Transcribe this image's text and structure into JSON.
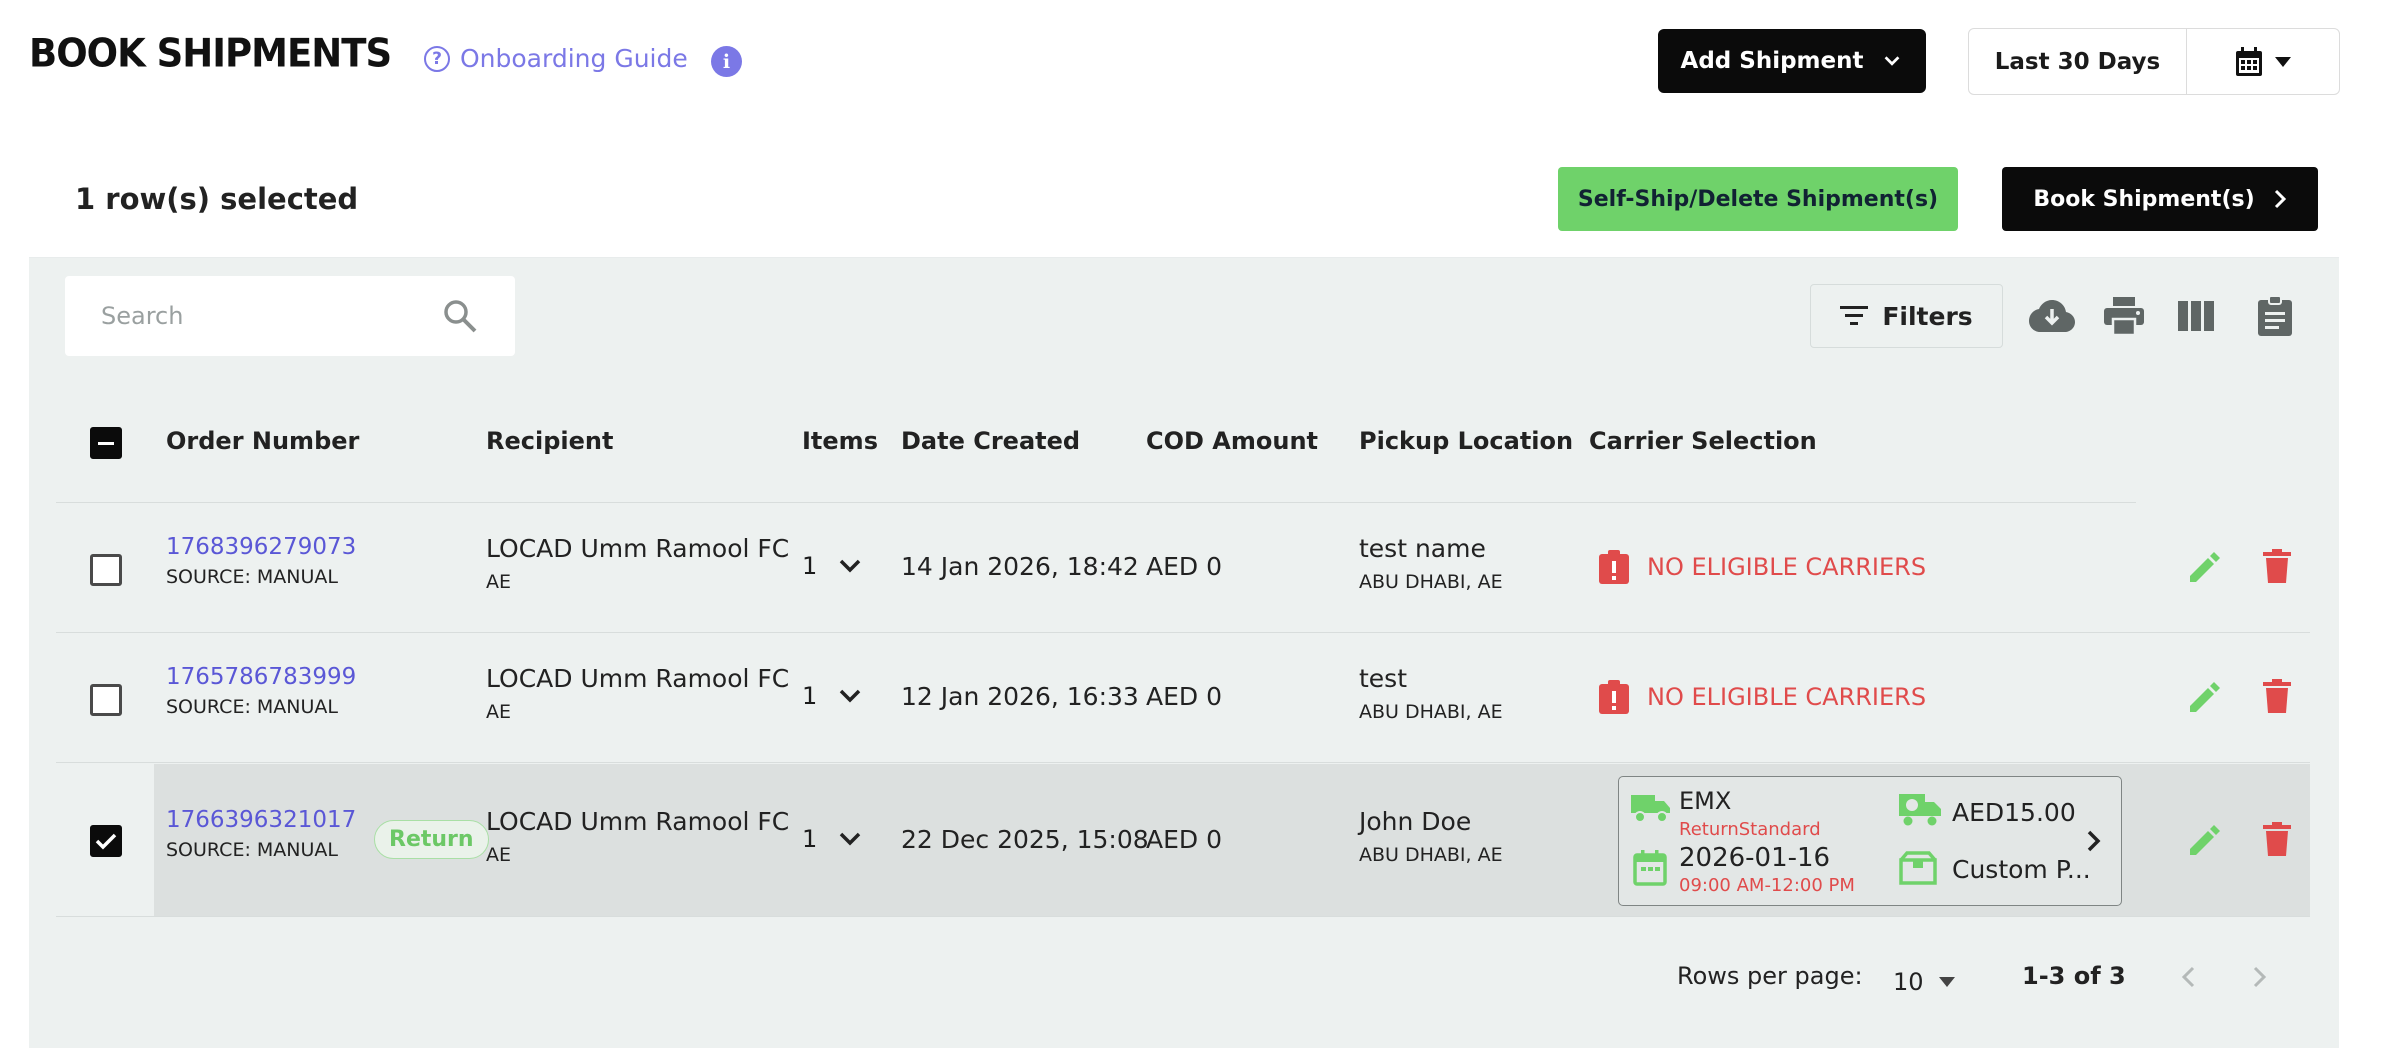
{
  "header": {
    "title": "BOOK SHIPMENTS",
    "onboarding_label": "Onboarding Guide",
    "add_shipment_label": "Add Shipment",
    "date_range_label": "Last 30 Days"
  },
  "selection": {
    "count_text": "1 row(s) selected",
    "self_ship_label": "Self-Ship/Delete Shipment(s)",
    "book_label": "Book Shipment(s)"
  },
  "toolbar": {
    "search_placeholder": "Search",
    "filters_label": "Filters",
    "icons": [
      "cloud-download-icon",
      "print-icon",
      "columns-icon",
      "clipboard-icon"
    ]
  },
  "table": {
    "columns": [
      "Order Number",
      "Recipient",
      "Items",
      "Date Created",
      "COD Amount",
      "Pickup Location",
      "Carrier Selection"
    ],
    "rows": [
      {
        "order_number": "1768396279073",
        "source": "SOURCE: MANUAL",
        "recipient": "LOCAD Umm Ramool FC",
        "recipient_country": "AE",
        "items": "1",
        "date_created": "14 Jan 2026, 18:42",
        "cod_amount": "AED 0",
        "pickup_name": "test name",
        "pickup_city": "ABU DHABI, AE",
        "carrier_status": "NO ELIGIBLE CARRIERS",
        "selected": false
      },
      {
        "order_number": "1765786783999",
        "source": "SOURCE: MANUAL",
        "recipient": "LOCAD Umm Ramool FC",
        "recipient_country": "AE",
        "items": "1",
        "date_created": "12 Jan 2026, 16:33",
        "cod_amount": "AED 0",
        "pickup_name": "test",
        "pickup_city": "ABU DHABI, AE",
        "carrier_status": "NO ELIGIBLE CARRIERS",
        "selected": false
      },
      {
        "order_number": "1766396321017",
        "badge": "Return",
        "source": "SOURCE: MANUAL",
        "recipient": "LOCAD Umm Ramool FC",
        "recipient_country": "AE",
        "items": "1",
        "date_created": "22 Dec 2025, 15:08",
        "cod_amount": "AED 0",
        "pickup_name": "John Doe",
        "pickup_city": "ABU DHABI, AE",
        "carrier": {
          "name": "EMX",
          "service": "ReturnStandard",
          "date": "2026-01-16",
          "time_window": "09:00 AM-12:00 PM",
          "price": "AED15.00",
          "package": "Custom P..."
        },
        "selected": true
      }
    ]
  },
  "pagination": {
    "rows_per_page_label": "Rows per page:",
    "rows_per_page_value": "10",
    "range_text": "1-3 of 3"
  },
  "colors": {
    "accent_purple": "#7b78e6",
    "success_green": "#6fd26a",
    "error_red": "#e04b4b",
    "panel_bg": "#edf1f0"
  }
}
